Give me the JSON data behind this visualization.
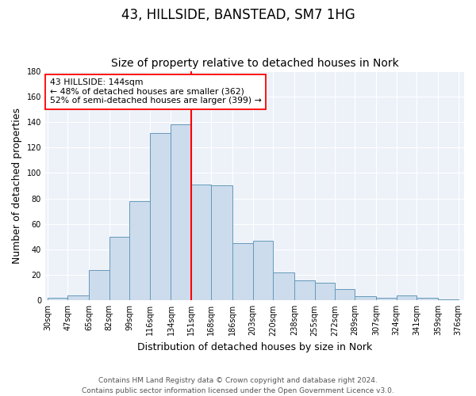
{
  "title": "43, HILLSIDE, BANSTEAD, SM7 1HG",
  "subtitle": "Size of property relative to detached houses in Nork",
  "xlabel": "Distribution of detached houses by size in Nork",
  "ylabel": "Number of detached properties",
  "categories": [
    "30sqm",
    "47sqm",
    "65sqm",
    "82sqm",
    "99sqm",
    "116sqm",
    "134sqm",
    "151sqm",
    "168sqm",
    "186sqm",
    "203sqm",
    "220sqm",
    "238sqm",
    "255sqm",
    "272sqm",
    "289sqm",
    "307sqm",
    "324sqm",
    "341sqm",
    "359sqm",
    "376sqm"
  ],
  "bins": [
    30,
    47,
    65,
    82,
    99,
    116,
    134,
    151,
    168,
    186,
    203,
    220,
    238,
    255,
    272,
    289,
    307,
    324,
    341,
    359,
    376
  ],
  "bin_counts": [
    2,
    4,
    24,
    50,
    78,
    131,
    138,
    91,
    90,
    45,
    47,
    22,
    16,
    14,
    9,
    3,
    2,
    4,
    2,
    1
  ],
  "bar_color": "#ccdcec",
  "bar_edge_color": "#6699bb",
  "vline_x": 151,
  "vline_color": "red",
  "annotation_text": "43 HILLSIDE: 144sqm\n← 48% of detached houses are smaller (362)\n52% of semi-detached houses are larger (399) →",
  "annotation_box_color": "white",
  "annotation_box_edge": "red",
  "ylim": [
    0,
    180
  ],
  "yticks": [
    0,
    20,
    40,
    60,
    80,
    100,
    120,
    140,
    160,
    180
  ],
  "background_color": "#edf2f9",
  "grid_color": "white",
  "footer": "Contains HM Land Registry data © Crown copyright and database right 2024.\nContains public sector information licensed under the Open Government Licence v3.0.",
  "title_fontsize": 12,
  "subtitle_fontsize": 10,
  "ylabel_fontsize": 9,
  "xlabel_fontsize": 9,
  "tick_fontsize": 7,
  "footer_fontsize": 6.5
}
